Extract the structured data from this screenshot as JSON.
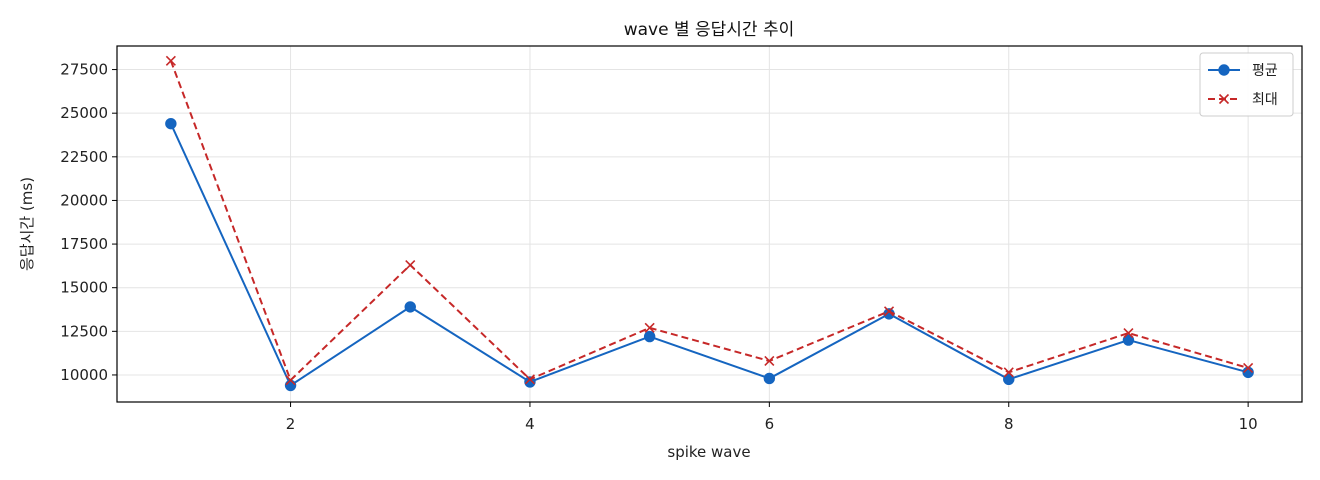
{
  "chart_data": {
    "type": "line",
    "title": "wave 별 응답시간 추이",
    "xlabel": "spike wave",
    "ylabel": "응답시간 (ms)",
    "x": [
      1,
      2,
      3,
      4,
      5,
      6,
      7,
      8,
      9,
      10
    ],
    "xlim": [
      0.55,
      10.45
    ],
    "ylim": [
      8450,
      28850
    ],
    "x_ticks": [
      2,
      4,
      6,
      8,
      10
    ],
    "y_ticks": [
      10000,
      12500,
      15000,
      17500,
      20000,
      22500,
      25000,
      27500
    ],
    "grid": true,
    "legend_position": "top-right",
    "series": [
      {
        "name": "평균",
        "values": [
          24400,
          9400,
          13900,
          9600,
          12200,
          9800,
          13500,
          9750,
          12000,
          10150
        ],
        "color": "#1565c0",
        "marker": "circle",
        "line_style": "solid"
      },
      {
        "name": "최대",
        "values": [
          28000,
          9700,
          16300,
          9750,
          12700,
          10800,
          13650,
          10150,
          12400,
          10400
        ],
        "color": "#c62828",
        "marker": "x",
        "line_style": "dashed"
      }
    ]
  }
}
